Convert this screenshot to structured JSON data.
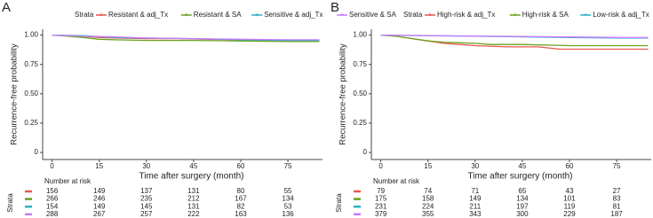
{
  "chart_data": [
    {
      "type": "line",
      "panel": "A",
      "ylabel": "Recurrence-free probability",
      "xlabel": "Time after surgery (month)",
      "legend_title": "Strata",
      "legend": "top",
      "risk_title": "Number at risk",
      "risk_label": "Strata",
      "xlim": [
        -3,
        86
      ],
      "xticks": [
        0,
        15,
        30,
        45,
        60,
        75
      ],
      "ylim": [
        -0.06,
        1.05
      ],
      "yticks": [
        0,
        0.25,
        {
          "value": 0.5,
          "label": "0.50"
        },
        0.75,
        {
          "value": 1,
          "label": "1.00"
        }
      ],
      "series": [
        {
          "name": "Resistant & adj_Tx",
          "color": "#e8574e",
          "x": [
            0,
            5,
            10,
            15,
            20,
            30,
            40,
            50,
            60,
            70,
            85
          ],
          "values": [
            1,
            0.995,
            0.99,
            0.98,
            0.975,
            0.97,
            0.97,
            0.965,
            0.96,
            0.955,
            0.955
          ],
          "at_risk": [
            156,
            149,
            137,
            131,
            80,
            55
          ]
        },
        {
          "name": "Resistant & SA",
          "color": "#6aa121",
          "x": [
            0,
            5,
            10,
            15,
            20,
            30,
            45,
            60,
            75,
            85
          ],
          "values": [
            1,
            0.99,
            0.98,
            0.965,
            0.96,
            0.955,
            0.955,
            0.95,
            0.945,
            0.945
          ],
          "at_risk": [
            266,
            246,
            235,
            212,
            167,
            134
          ]
        },
        {
          "name": "Sensitive & adj_Tx",
          "color": "#2ab0c5",
          "x": [
            0,
            10,
            20,
            30,
            45,
            60,
            75,
            85
          ],
          "values": [
            1,
            0.995,
            0.98,
            0.975,
            0.97,
            0.96,
            0.955,
            0.955
          ],
          "at_risk": [
            154,
            149,
            145,
            131,
            82,
            53
          ]
        },
        {
          "name": "Sensitive & SA",
          "color": "#c77cff",
          "x": [
            0,
            10,
            20,
            30,
            45,
            60,
            75,
            85
          ],
          "values": [
            1,
            0.99,
            0.985,
            0.975,
            0.97,
            0.965,
            0.96,
            0.96
          ],
          "at_risk": [
            288,
            267,
            257,
            222,
            163,
            136
          ]
        }
      ]
    },
    {
      "type": "line",
      "panel": "B",
      "ylabel": "Recurrence-free probability",
      "xlabel": "Time after surgery (month)",
      "legend_title": "Strata",
      "legend": "top",
      "risk_title": "Number at risk",
      "risk_label": "Strata",
      "xlim": [
        -3,
        86
      ],
      "xticks": [
        0,
        15,
        30,
        45,
        60,
        75
      ],
      "ylim": [
        -0.06,
        1.05
      ],
      "yticks": [
        0,
        0.25,
        {
          "value": 0.5,
          "label": "0.50"
        },
        0.75,
        {
          "value": 1,
          "label": "1.00"
        }
      ],
      "series": [
        {
          "name": "High-risk & adj_Tx",
          "color": "#e8574e",
          "x": [
            0,
            5,
            10,
            15,
            20,
            25,
            30,
            40,
            50,
            57,
            65,
            85
          ],
          "values": [
            1,
            0.99,
            0.97,
            0.95,
            0.93,
            0.92,
            0.91,
            0.9,
            0.9,
            0.88,
            0.88,
            0.88
          ],
          "at_risk": [
            79,
            74,
            71,
            65,
            43,
            27
          ]
        },
        {
          "name": "High-risk & SA",
          "color": "#6aa121",
          "x": [
            0,
            5,
            10,
            15,
            20,
            30,
            35,
            45,
            60,
            75,
            85
          ],
          "values": [
            1,
            0.99,
            0.97,
            0.95,
            0.94,
            0.93,
            0.92,
            0.92,
            0.91,
            0.91,
            0.91
          ],
          "at_risk": [
            175,
            158,
            149,
            134,
            101,
            83
          ]
        },
        {
          "name": "Low-risk & adj_Tx",
          "color": "#2ab0c5",
          "x": [
            0,
            15,
            30,
            45,
            60,
            75,
            85
          ],
          "values": [
            1,
            0.995,
            0.99,
            0.985,
            0.98,
            0.975,
            0.975
          ],
          "at_risk": [
            231,
            224,
            211,
            197,
            119,
            81
          ]
        },
        {
          "name": "Low-risk & SA",
          "color": "#c77cff",
          "x": [
            0,
            15,
            30,
            45,
            60,
            75,
            85
          ],
          "values": [
            1,
            0.996,
            0.992,
            0.988,
            0.984,
            0.98,
            0.98
          ],
          "at_risk": [
            379,
            355,
            343,
            300,
            229,
            187
          ]
        }
      ]
    }
  ]
}
